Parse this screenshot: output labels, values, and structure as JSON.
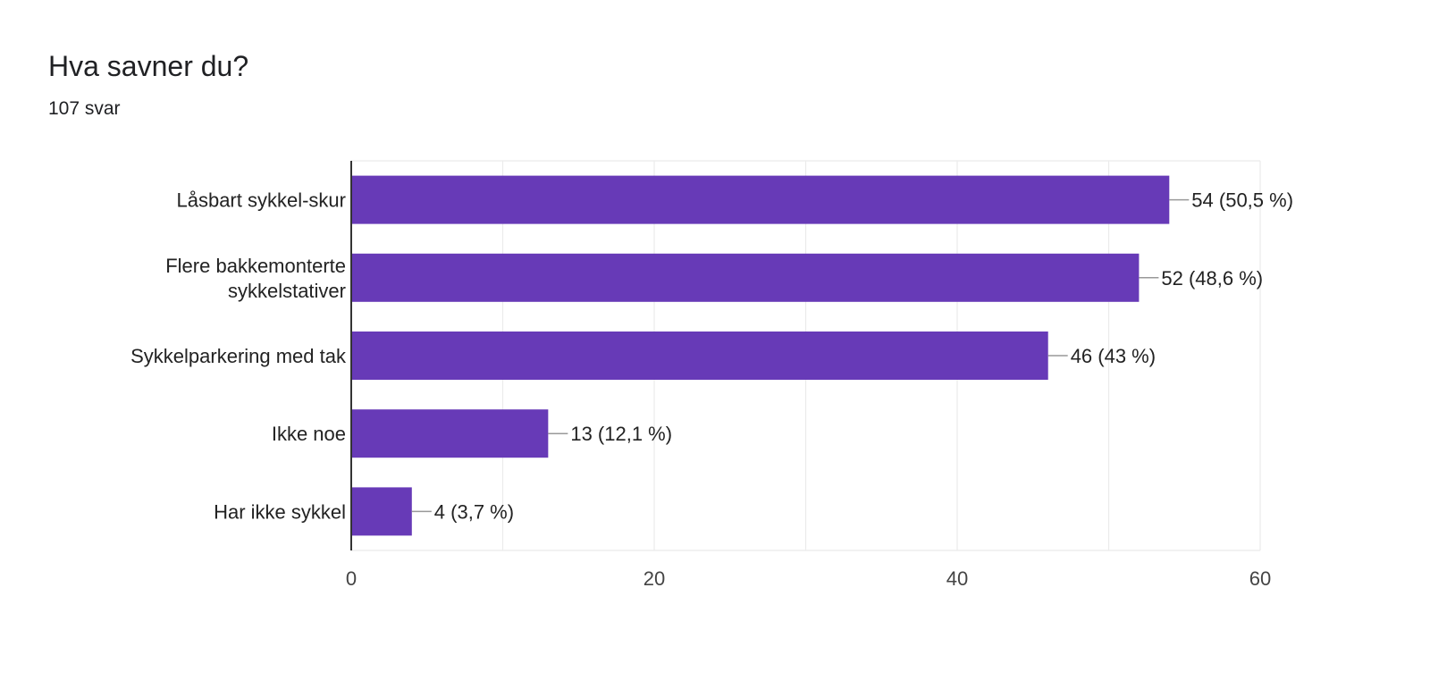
{
  "card": {
    "title": "Hva savner du?",
    "response_count": "107 svar"
  },
  "colors": {
    "bar": "#673ab7",
    "grid": "#ebebeb",
    "axis": "#333333",
    "leader": "#999999"
  },
  "chart_data": {
    "type": "bar",
    "orientation": "horizontal",
    "categories": [
      [
        "Låsbart sykkel-skur"
      ],
      [
        "Flere bakkemonterte",
        "sykkelstativer"
      ],
      [
        "Sykkelparkering med tak"
      ],
      [
        "Ikke noe"
      ],
      [
        "Har ikke sykkel"
      ]
    ],
    "values": [
      54,
      52,
      46,
      13,
      4
    ],
    "value_labels": [
      "54 (50,5 %)",
      "52 (48,6 %)",
      "46 (43 %)",
      "13 (12,1 %)",
      "4 (3,7 %)"
    ],
    "xlim": [
      0,
      60
    ],
    "xticks": [
      0,
      20,
      40,
      60
    ],
    "grid": true,
    "title": "",
    "xlabel": "",
    "ylabel": ""
  }
}
